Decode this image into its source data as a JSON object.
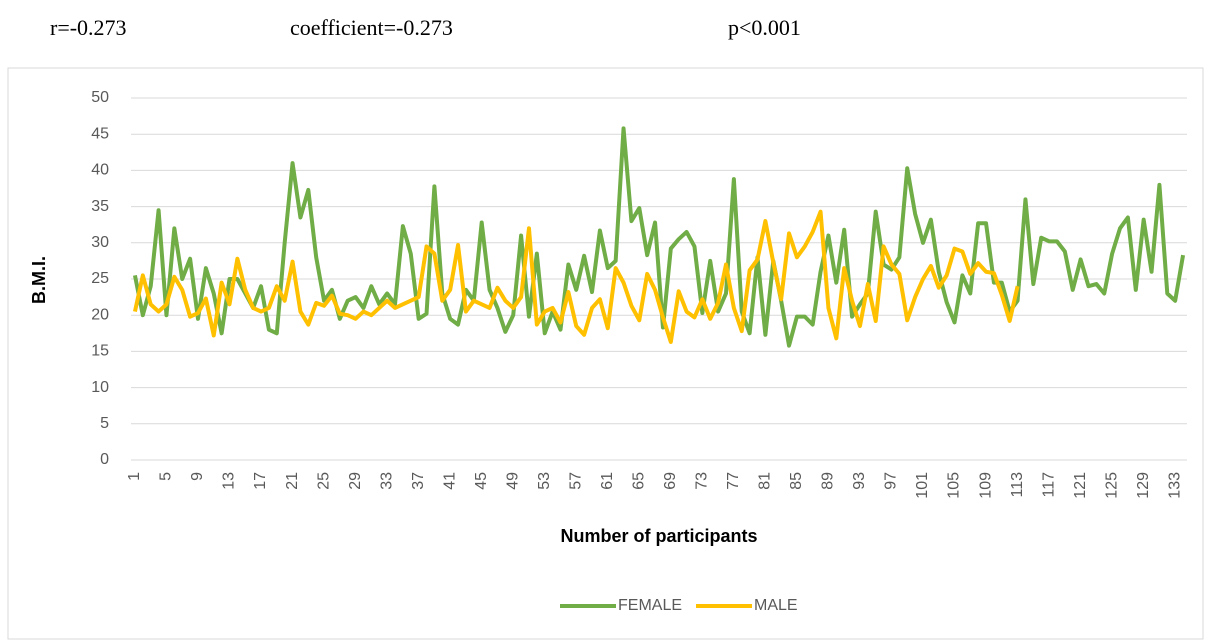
{
  "chart_data": {
    "type": "line",
    "annotations": [
      "r=-0.273",
      "coefficient=-0.273",
      "p<0.001"
    ],
    "xlabel": "Number of participants",
    "ylabel": "B.M.I.",
    "categories": [
      "1",
      null,
      null,
      null,
      "5",
      null,
      null,
      null,
      "9",
      null,
      null,
      null,
      "13",
      null,
      null,
      null,
      "17",
      null,
      null,
      null,
      "21",
      null,
      null,
      null,
      "25",
      null,
      null,
      null,
      "29",
      null,
      null,
      null,
      "33",
      null,
      null,
      null,
      "37",
      null,
      null,
      null,
      "41",
      null,
      null,
      null,
      "45",
      null,
      null,
      null,
      "49",
      null,
      null,
      null,
      "53",
      null,
      null,
      null,
      "57",
      null,
      null,
      null,
      "61",
      null,
      null,
      null,
      "65",
      null,
      null,
      null,
      "69",
      null,
      null,
      null,
      "73",
      null,
      null,
      null,
      "77",
      null,
      null,
      null,
      "81",
      null,
      null,
      null,
      "85",
      null,
      null,
      null,
      "89",
      null,
      null,
      null,
      "93",
      null,
      null,
      null,
      "97",
      null,
      null,
      null,
      "101",
      null,
      null,
      null,
      "105",
      null,
      null,
      null,
      "109",
      null,
      null,
      null,
      "113",
      null,
      null,
      null,
      "117",
      null,
      null,
      null,
      "121",
      null,
      null,
      null,
      "125",
      null,
      null,
      null,
      "129",
      null,
      null,
      null,
      "133",
      null
    ],
    "series": [
      {
        "name": "FEMALE",
        "color": "#70ad47",
        "values": [
          25.5,
          20,
          24,
          34.5,
          20,
          32,
          25,
          27.8,
          19.5,
          26.5,
          23,
          17.5,
          25,
          25,
          23,
          21,
          24,
          18,
          17.5,
          30,
          41,
          33.5,
          37.3,
          28,
          22,
          23.5,
          19.5,
          22,
          22.5,
          21,
          24,
          21.5,
          23,
          21.5,
          32.3,
          28.5,
          19.5,
          20.2,
          37.8,
          23,
          19.5,
          18.7,
          23.5,
          22,
          32.8,
          23.5,
          21,
          17.7,
          20,
          31,
          19.8,
          28.5,
          17.5,
          20.5,
          18,
          27,
          23.5,
          28.2,
          23.2,
          31.7,
          26.5,
          27.5,
          45.8,
          33,
          34.8,
          28.3,
          32.8,
          18.3,
          29.2,
          30.5,
          31.5,
          29.5,
          20.3,
          27.5,
          20.5,
          23,
          38.8,
          20.5,
          17.5,
          28,
          17.3,
          27.5,
          22,
          15.8,
          19.8,
          19.8,
          18.7,
          26,
          31,
          24.5,
          31.8,
          19.8,
          21.5,
          23,
          34.3,
          27,
          26.3,
          28,
          40.3,
          34,
          30,
          33.2,
          26,
          21.8,
          19,
          25.5,
          23,
          32.7,
          32.7,
          24.5,
          24.5,
          20.5,
          22,
          36,
          24.3,
          30.7,
          30.2,
          30.2,
          28.8,
          23.5,
          27.7,
          24,
          24.3,
          23,
          28.5,
          32,
          33.5,
          23.5,
          33.2,
          26,
          38,
          23,
          22,
          28.3
        ]
      },
      {
        "name": "MALE",
        "color": "#ffc000",
        "values": [
          20.5,
          25.5,
          21.5,
          20.5,
          21.5,
          25.3,
          23.5,
          19.8,
          20.3,
          22.3,
          17.2,
          24.5,
          21.5,
          27.8,
          23.5,
          21,
          20.5,
          21,
          24,
          22,
          27.4,
          20.5,
          18.7,
          21.7,
          21.3,
          22.7,
          20.2,
          20,
          19.5,
          20.5,
          20,
          21,
          22,
          21,
          21.5,
          22,
          22.5,
          29.5,
          28.5,
          22,
          23.5,
          29.7,
          20.5,
          22,
          21.5,
          21,
          23.8,
          22,
          21,
          22.5,
          32,
          18.7,
          20.5,
          21,
          19,
          23.2,
          18.5,
          17.3,
          21,
          22.2,
          18.2,
          26.5,
          24.5,
          21.3,
          19.3,
          25.7,
          23.5,
          19.7,
          16.3,
          23.3,
          20.5,
          19.7,
          22.2,
          19.5,
          21.7,
          27,
          21,
          17.8,
          26.2,
          27.7,
          33,
          27.3,
          22.2,
          31.3,
          28,
          29.5,
          31.5,
          34.3,
          21,
          16.8,
          26.5,
          22,
          18.5,
          24.3,
          19.2,
          29.5,
          27,
          25.7,
          19.3,
          22.5,
          25,
          26.8,
          23.8,
          25.5,
          29.2,
          28.8,
          25.7,
          27.2,
          26,
          25.8,
          22.8,
          19.2,
          24,
          null,
          null,
          null,
          null,
          null,
          null,
          null,
          null,
          null,
          null,
          null,
          null,
          null,
          null,
          null,
          null,
          null,
          null,
          null,
          null,
          null
        ]
      }
    ],
    "ylim": [
      0,
      50
    ],
    "yticks": [
      0,
      5,
      10,
      15,
      20,
      25,
      30,
      35,
      40,
      45,
      50
    ],
    "grid": true,
    "legend": "bottom"
  }
}
